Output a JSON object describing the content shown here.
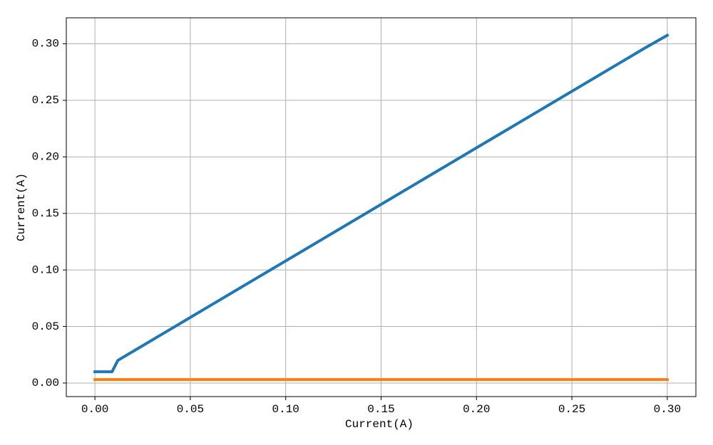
{
  "chart_data": {
    "type": "line",
    "xlabel": "Current(A)",
    "ylabel": "Current(A)",
    "x": [
      0,
      0.003,
      0.006,
      0.009,
      0.012,
      0.024,
      0.036,
      0.048,
      0.06,
      0.072,
      0.084,
      0.096,
      0.108,
      0.12,
      0.132,
      0.144,
      0.156,
      0.168,
      0.18,
      0.192,
      0.204,
      0.216,
      0.228,
      0.24,
      0.252,
      0.264,
      0.276,
      0.288,
      0.3
    ],
    "series": [
      {
        "color": "#1f77b4",
        "values": [
          0.01,
          0.01,
          0.01,
          0.01,
          0.02,
          0.032,
          0.044,
          0.056,
          0.068,
          0.08,
          0.092,
          0.104,
          0.116,
          0.128,
          0.14,
          0.152,
          0.164,
          0.176,
          0.188,
          0.2,
          0.212,
          0.224,
          0.236,
          0.248,
          0.26,
          0.272,
          0.284,
          0.296,
          0.3075
        ]
      },
      {
        "color": "#ff7f0e",
        "values": [
          0.003,
          0.003,
          0.003,
          0.003,
          0.003,
          0.003,
          0.003,
          0.003,
          0.003,
          0.003,
          0.003,
          0.003,
          0.003,
          0.003,
          0.003,
          0.003,
          0.003,
          0.003,
          0.003,
          0.003,
          0.003,
          0.003,
          0.003,
          0.003,
          0.003,
          0.003,
          0.003,
          0.003,
          0.003
        ]
      }
    ],
    "xlim": [
      -0.015,
      0.315
    ],
    "ylim": [
      -0.012,
      0.323
    ],
    "xticks": [
      {
        "value": 0,
        "label": "0.00"
      },
      {
        "value": 0.05,
        "label": "0.05"
      },
      {
        "value": 0.1,
        "label": "0.10"
      },
      {
        "value": 0.15,
        "label": "0.15"
      },
      {
        "value": 0.2,
        "label": "0.20"
      },
      {
        "value": 0.25,
        "label": "0.25"
      },
      {
        "value": 0.3,
        "label": "0.30"
      }
    ],
    "yticks": [
      {
        "value": 0,
        "label": "0.00"
      },
      {
        "value": 0.05,
        "label": "0.05"
      },
      {
        "value": 0.1,
        "label": "0.10"
      },
      {
        "value": 0.15,
        "label": "0.15"
      },
      {
        "value": 0.2,
        "label": "0.20"
      },
      {
        "value": 0.25,
        "label": "0.25"
      },
      {
        "value": 0.3,
        "label": "0.30"
      }
    ],
    "grid": true
  }
}
